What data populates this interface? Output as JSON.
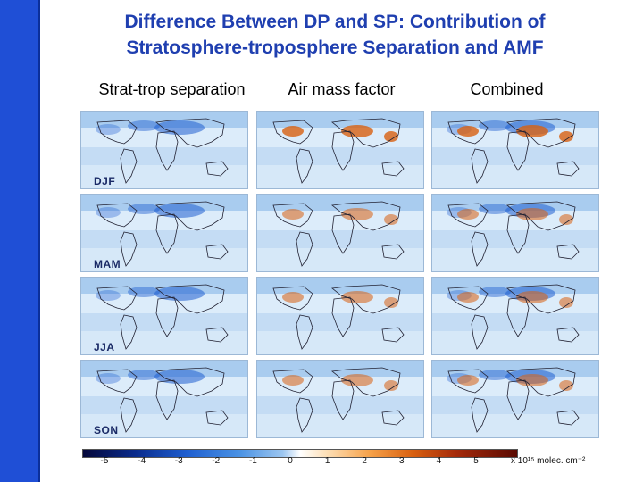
{
  "title": {
    "line1": "Difference Between DP and SP: Contribution of",
    "line2": "Stratosphere-troposphere Separation and AMF"
  },
  "columns": [
    "Strat-trop separation",
    "Air mass factor",
    "Combined"
  ],
  "seasons": [
    "DJF",
    "MAM",
    "JJA",
    "SON"
  ],
  "colorbar": {
    "ticks": [
      "-5",
      "-4",
      "-3",
      "-2",
      "-1",
      "0",
      "1",
      "2",
      "3",
      "4",
      "5"
    ],
    "units": "x 10¹⁵ molec. cm⁻²"
  },
  "colors": {
    "sidebar": "#1f4fd6",
    "title": "#1f3fb0",
    "ocean": "#cfe3f6",
    "negative": "#1f5fd0",
    "positive": "#d86010"
  }
}
